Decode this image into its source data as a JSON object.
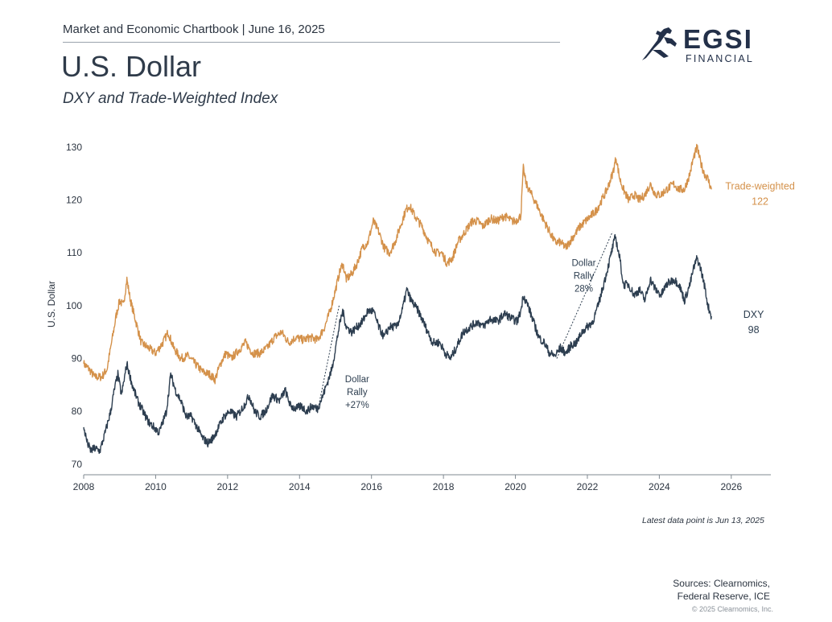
{
  "header": {
    "report_line": "Market and Economic Chartbook | June 16, 2025",
    "title": "U.S. Dollar",
    "subtitle": "DXY and Trade-Weighted Index"
  },
  "logo": {
    "word": "EGSI",
    "sub": "FINANCIAL",
    "icon": "bull-icon"
  },
  "footer": {
    "latest_note": "Latest data point is Jun 13, 2025",
    "sources_line1": "Sources: Clearnomics,",
    "sources_line2": "Federal Reserve, ICE",
    "copyright": "© 2025 Clearnomics, Inc."
  },
  "colors": {
    "trade_weighted": "#d4914a",
    "dxy": "#2d3e50",
    "axis": "#7f8890",
    "text": "#2b3440"
  },
  "chart_data": {
    "type": "line",
    "ylabel": "U.S. Dollar",
    "xlabel": "",
    "xlim": [
      2008,
      2027.1
    ],
    "ylim": [
      68,
      131.5
    ],
    "x_ticks": [
      2008,
      2010,
      2012,
      2014,
      2016,
      2018,
      2020,
      2022,
      2024,
      2026
    ],
    "y_ticks": [
      70,
      80,
      90,
      100,
      110,
      120,
      130
    ],
    "grid": false,
    "series": [
      {
        "name": "Trade-weighted",
        "end_label": "Trade-weighted",
        "end_value_label": "122",
        "points": [
          [
            2008.0,
            89
          ],
          [
            2008.15,
            88
          ],
          [
            2008.3,
            86.5
          ],
          [
            2008.5,
            86.5
          ],
          [
            2008.65,
            88
          ],
          [
            2008.8,
            94
          ],
          [
            2008.9,
            98
          ],
          [
            2009.0,
            101
          ],
          [
            2009.1,
            100
          ],
          [
            2009.2,
            105
          ],
          [
            2009.3,
            101
          ],
          [
            2009.45,
            97
          ],
          [
            2009.6,
            93
          ],
          [
            2009.8,
            92
          ],
          [
            2010.0,
            91
          ],
          [
            2010.2,
            93
          ],
          [
            2010.35,
            95
          ],
          [
            2010.5,
            92
          ],
          [
            2010.7,
            90
          ],
          [
            2010.9,
            90.5
          ],
          [
            2011.1,
            89
          ],
          [
            2011.3,
            87.5
          ],
          [
            2011.5,
            87
          ],
          [
            2011.65,
            86
          ],
          [
            2011.8,
            89
          ],
          [
            2011.95,
            91
          ],
          [
            2012.1,
            90
          ],
          [
            2012.3,
            91.5
          ],
          [
            2012.5,
            93
          ],
          [
            2012.7,
            91
          ],
          [
            2012.9,
            91
          ],
          [
            2013.1,
            92
          ],
          [
            2013.3,
            94
          ],
          [
            2013.5,
            95
          ],
          [
            2013.7,
            93
          ],
          [
            2013.9,
            94
          ],
          [
            2014.1,
            93.5
          ],
          [
            2014.3,
            94
          ],
          [
            2014.5,
            93.5
          ],
          [
            2014.7,
            96
          ],
          [
            2014.85,
            99
          ],
          [
            2015.0,
            103
          ],
          [
            2015.1,
            106
          ],
          [
            2015.2,
            108
          ],
          [
            2015.3,
            105
          ],
          [
            2015.45,
            106
          ],
          [
            2015.6,
            108
          ],
          [
            2015.75,
            111
          ],
          [
            2015.9,
            112
          ],
          [
            2016.05,
            116
          ],
          [
            2016.2,
            114
          ],
          [
            2016.35,
            111
          ],
          [
            2016.5,
            110
          ],
          [
            2016.65,
            112
          ],
          [
            2016.8,
            115
          ],
          [
            2016.95,
            118
          ],
          [
            2017.05,
            119
          ],
          [
            2017.2,
            117
          ],
          [
            2017.4,
            115
          ],
          [
            2017.6,
            112
          ],
          [
            2017.8,
            110
          ],
          [
            2017.95,
            110
          ],
          [
            2018.1,
            108
          ],
          [
            2018.25,
            109
          ],
          [
            2018.4,
            112
          ],
          [
            2018.6,
            114
          ],
          [
            2018.8,
            116
          ],
          [
            2018.95,
            116
          ],
          [
            2019.1,
            115
          ],
          [
            2019.3,
            116.5
          ],
          [
            2019.5,
            116
          ],
          [
            2019.7,
            117
          ],
          [
            2019.9,
            116
          ],
          [
            2020.0,
            116
          ],
          [
            2020.15,
            117
          ],
          [
            2020.22,
            126
          ],
          [
            2020.3,
            123
          ],
          [
            2020.45,
            121
          ],
          [
            2020.6,
            119
          ],
          [
            2020.8,
            116
          ],
          [
            2020.95,
            114
          ],
          [
            2021.1,
            112
          ],
          [
            2021.25,
            112
          ],
          [
            2021.4,
            111
          ],
          [
            2021.6,
            113
          ],
          [
            2021.8,
            115
          ],
          [
            2021.95,
            116
          ],
          [
            2022.1,
            117
          ],
          [
            2022.25,
            118
          ],
          [
            2022.4,
            120
          ],
          [
            2022.55,
            122
          ],
          [
            2022.7,
            125
          ],
          [
            2022.8,
            128
          ],
          [
            2022.9,
            124
          ],
          [
            2023.0,
            122
          ],
          [
            2023.15,
            120
          ],
          [
            2023.3,
            121
          ],
          [
            2023.45,
            120
          ],
          [
            2023.6,
            121
          ],
          [
            2023.75,
            123
          ],
          [
            2023.9,
            121
          ],
          [
            2024.05,
            121
          ],
          [
            2024.2,
            122
          ],
          [
            2024.4,
            123
          ],
          [
            2024.55,
            122
          ],
          [
            2024.7,
            122
          ],
          [
            2024.85,
            125
          ],
          [
            2024.95,
            128
          ],
          [
            2025.05,
            130
          ],
          [
            2025.15,
            127
          ],
          [
            2025.25,
            125
          ],
          [
            2025.35,
            124
          ],
          [
            2025.45,
            122
          ]
        ]
      },
      {
        "name": "DXY",
        "end_label": "DXY",
        "end_value_label": "98",
        "points": [
          [
            2008.0,
            77
          ],
          [
            2008.1,
            74
          ],
          [
            2008.2,
            72.5
          ],
          [
            2008.3,
            73
          ],
          [
            2008.45,
            72.5
          ],
          [
            2008.6,
            76
          ],
          [
            2008.75,
            80
          ],
          [
            2008.85,
            84
          ],
          [
            2008.95,
            87
          ],
          [
            2009.05,
            83
          ],
          [
            2009.2,
            89
          ],
          [
            2009.35,
            85
          ],
          [
            2009.5,
            82
          ],
          [
            2009.65,
            80
          ],
          [
            2009.8,
            78
          ],
          [
            2009.95,
            77
          ],
          [
            2010.1,
            76
          ],
          [
            2010.3,
            80
          ],
          [
            2010.42,
            87
          ],
          [
            2010.55,
            84
          ],
          [
            2010.7,
            82
          ],
          [
            2010.85,
            79
          ],
          [
            2011.0,
            79
          ],
          [
            2011.15,
            77
          ],
          [
            2011.3,
            75
          ],
          [
            2011.45,
            74
          ],
          [
            2011.6,
            75
          ],
          [
            2011.75,
            77
          ],
          [
            2011.9,
            79
          ],
          [
            2012.05,
            80
          ],
          [
            2012.25,
            79
          ],
          [
            2012.45,
            81
          ],
          [
            2012.6,
            83
          ],
          [
            2012.75,
            80
          ],
          [
            2012.9,
            79
          ],
          [
            2013.05,
            80
          ],
          [
            2013.25,
            83
          ],
          [
            2013.45,
            82
          ],
          [
            2013.6,
            84
          ],
          [
            2013.75,
            81
          ],
          [
            2013.9,
            80.5
          ],
          [
            2014.05,
            81
          ],
          [
            2014.2,
            80
          ],
          [
            2014.35,
            81
          ],
          [
            2014.5,
            80.5
          ],
          [
            2014.65,
            83
          ],
          [
            2014.8,
            86
          ],
          [
            2014.9,
            88
          ],
          [
            2015.0,
            92
          ],
          [
            2015.1,
            96
          ],
          [
            2015.2,
            99
          ],
          [
            2015.3,
            96
          ],
          [
            2015.45,
            95
          ],
          [
            2015.6,
            96
          ],
          [
            2015.75,
            97
          ],
          [
            2015.9,
            99
          ],
          [
            2016.05,
            99
          ],
          [
            2016.2,
            96
          ],
          [
            2016.35,
            94
          ],
          [
            2016.5,
            96
          ],
          [
            2016.7,
            96
          ],
          [
            2016.85,
            99
          ],
          [
            2016.98,
            103
          ],
          [
            2017.1,
            101
          ],
          [
            2017.3,
            99
          ],
          [
            2017.5,
            96
          ],
          [
            2017.7,
            93
          ],
          [
            2017.9,
            93
          ],
          [
            2018.05,
            91
          ],
          [
            2018.2,
            90
          ],
          [
            2018.35,
            92
          ],
          [
            2018.55,
            95
          ],
          [
            2018.75,
            96
          ],
          [
            2018.95,
            97
          ],
          [
            2019.1,
            96
          ],
          [
            2019.3,
            97.5
          ],
          [
            2019.5,
            97
          ],
          [
            2019.7,
            98.5
          ],
          [
            2019.9,
            97.5
          ],
          [
            2020.05,
            97
          ],
          [
            2020.15,
            99
          ],
          [
            2020.22,
            102
          ],
          [
            2020.35,
            100
          ],
          [
            2020.5,
            97
          ],
          [
            2020.65,
            94
          ],
          [
            2020.8,
            93
          ],
          [
            2020.95,
            91
          ],
          [
            2021.1,
            90.5
          ],
          [
            2021.25,
            92
          ],
          [
            2021.4,
            91
          ],
          [
            2021.55,
            92.5
          ],
          [
            2021.7,
            93
          ],
          [
            2021.85,
            95
          ],
          [
            2022.0,
            96
          ],
          [
            2022.15,
            97
          ],
          [
            2022.3,
            100
          ],
          [
            2022.45,
            104
          ],
          [
            2022.6,
            108
          ],
          [
            2022.7,
            111
          ],
          [
            2022.78,
            113
          ],
          [
            2022.9,
            109
          ],
          [
            2023.0,
            104
          ],
          [
            2023.15,
            104
          ],
          [
            2023.3,
            102
          ],
          [
            2023.45,
            103
          ],
          [
            2023.6,
            101
          ],
          [
            2023.75,
            105
          ],
          [
            2023.9,
            103
          ],
          [
            2024.05,
            102
          ],
          [
            2024.2,
            104
          ],
          [
            2024.4,
            105
          ],
          [
            2024.55,
            104
          ],
          [
            2024.7,
            101
          ],
          [
            2024.85,
            104
          ],
          [
            2024.95,
            107
          ],
          [
            2025.05,
            109
          ],
          [
            2025.15,
            107
          ],
          [
            2025.25,
            104
          ],
          [
            2025.35,
            100
          ],
          [
            2025.45,
            98
          ]
        ]
      }
    ],
    "annotations": [
      {
        "id": "rally-2014",
        "lines": [
          "Dollar",
          "Rally",
          "+27%"
        ],
        "from": [
          2014.5,
          80
        ],
        "to": [
          2015.1,
          100
        ]
      },
      {
        "id": "rally-2021",
        "lines": [
          "Dollar",
          "Rally",
          "28%"
        ],
        "from": [
          2021.15,
          90
        ],
        "to": [
          2022.7,
          114
        ]
      }
    ]
  }
}
